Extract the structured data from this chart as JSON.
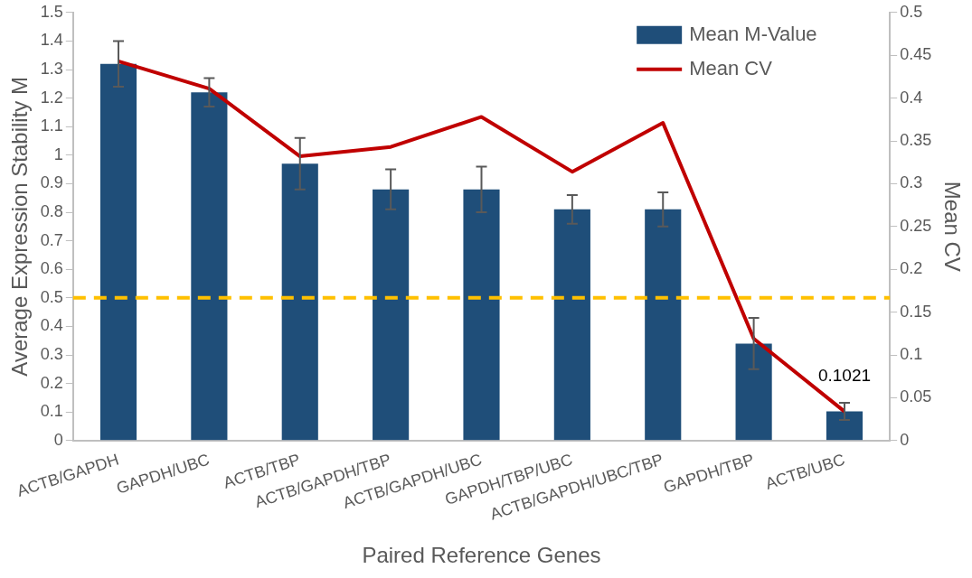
{
  "chart_data": {
    "type": "bar",
    "xlabel": "Paired Reference Genes",
    "ylabel": "Average Expression Stability M",
    "y2label": "Mean CV",
    "categories": [
      "ACTB/GAPDH",
      "GAPDH/UBC",
      "ACTB/TBP",
      "ACTB/GAPDH/TBP",
      "ACTB/GAPDH/UBC",
      "GAPDH/TBP/UBC",
      "ACTB/GAPDH/UBC/TBP",
      "GAPDH/TBP",
      "ACTB/UBC"
    ],
    "series": [
      {
        "name": "Mean M-Value",
        "color": "#1f4e79",
        "values": [
          1.32,
          1.22,
          0.97,
          0.88,
          0.88,
          0.81,
          0.81,
          0.34,
          0.1021
        ],
        "errors": [
          0.08,
          0.05,
          0.09,
          0.07,
          0.08,
          0.05,
          0.06,
          0.09,
          0.03
        ],
        "value_labels": [
          null,
          null,
          null,
          null,
          null,
          null,
          null,
          null,
          "0.1021"
        ]
      },
      {
        "name": "Mean CV",
        "type": "line",
        "axis": "y2",
        "color": "#c00000",
        "values": [
          0.443,
          0.411,
          0.332,
          0.343,
          0.378,
          0.314,
          0.371,
          0.119,
          0.034
        ]
      }
    ],
    "ylim": [
      0,
      1.5
    ],
    "yticks": [
      0,
      0.1,
      0.2,
      0.3,
      0.4,
      0.5,
      0.6,
      0.7,
      0.8,
      0.9,
      1,
      1.1,
      1.2,
      1.3,
      1.4,
      1.5
    ],
    "y2lim": [
      0,
      0.5
    ],
    "y2ticks": [
      0,
      0.05,
      0.1,
      0.15,
      0.2,
      0.25,
      0.3,
      0.35,
      0.4,
      0.45,
      0.5
    ],
    "ref_lines": [
      {
        "axis": "y",
        "value": 0.5,
        "color": "#ffc000",
        "line_style": "dashed"
      }
    ],
    "legend": "top right",
    "marker": "none",
    "line_style": "solid",
    "grid": false
  }
}
